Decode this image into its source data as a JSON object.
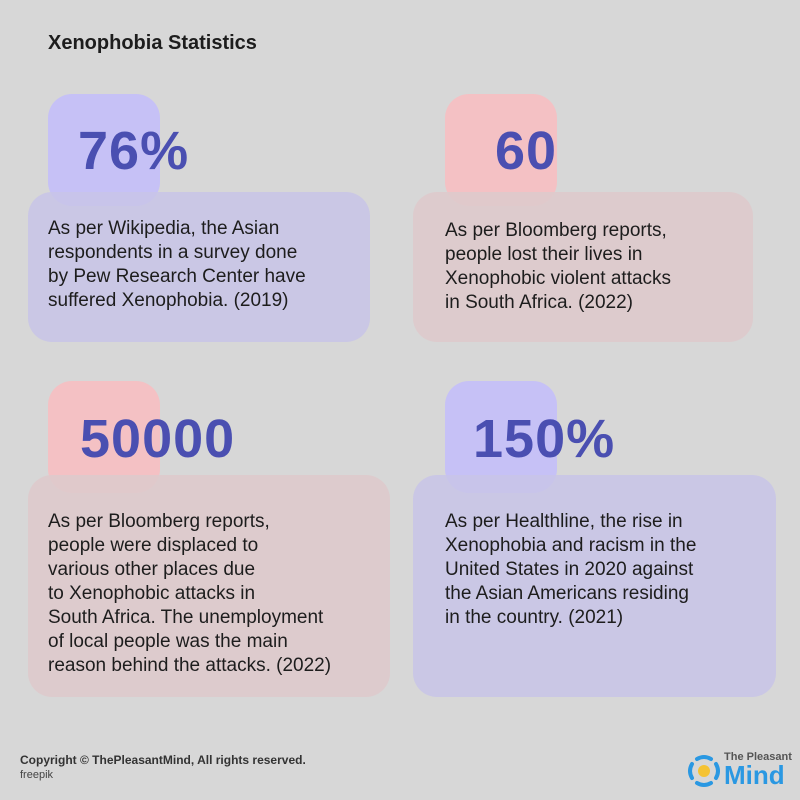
{
  "title": "Xenophobia Statistics",
  "cards": [
    {
      "number": "76%",
      "lines": [
        "As per Wikipedia, the Asian",
        "respondents in a survey done",
        "by Pew Research Center have",
        "suffered Xenophobia. (2019)"
      ]
    },
    {
      "number": "60",
      "lines": [
        "As per Bloomberg reports,",
        "people lost their lives in",
        "Xenophobic violent attacks",
        "in South Africa. (2022)"
      ]
    },
    {
      "number": "50000",
      "lines": [
        "As per Bloomberg reports,",
        "people were displaced to",
        "various other places due",
        "to Xenophobic attacks in",
        "South Africa. The unemployment",
        "of local people was the main",
        "reason behind the attacks. (2022)"
      ]
    },
    {
      "number": "150%",
      "lines": [
        "As per Healthline, the rise in",
        "Xenophobia and racism in the",
        "United States in 2020 against",
        "the Asian Americans residing",
        "in the country. (2021)"
      ]
    }
  ],
  "footer": {
    "copyright": "Copyright © ThePleasantMind, All rights reserved.",
    "credit": "freepik"
  },
  "logo": {
    "small": "The Pleasant",
    "big": "Mind"
  },
  "colors": {
    "number": "#4a4fb1",
    "purple": "#c6c1f6",
    "pink": "#f4c1c4",
    "brand": "#2a98e2"
  }
}
